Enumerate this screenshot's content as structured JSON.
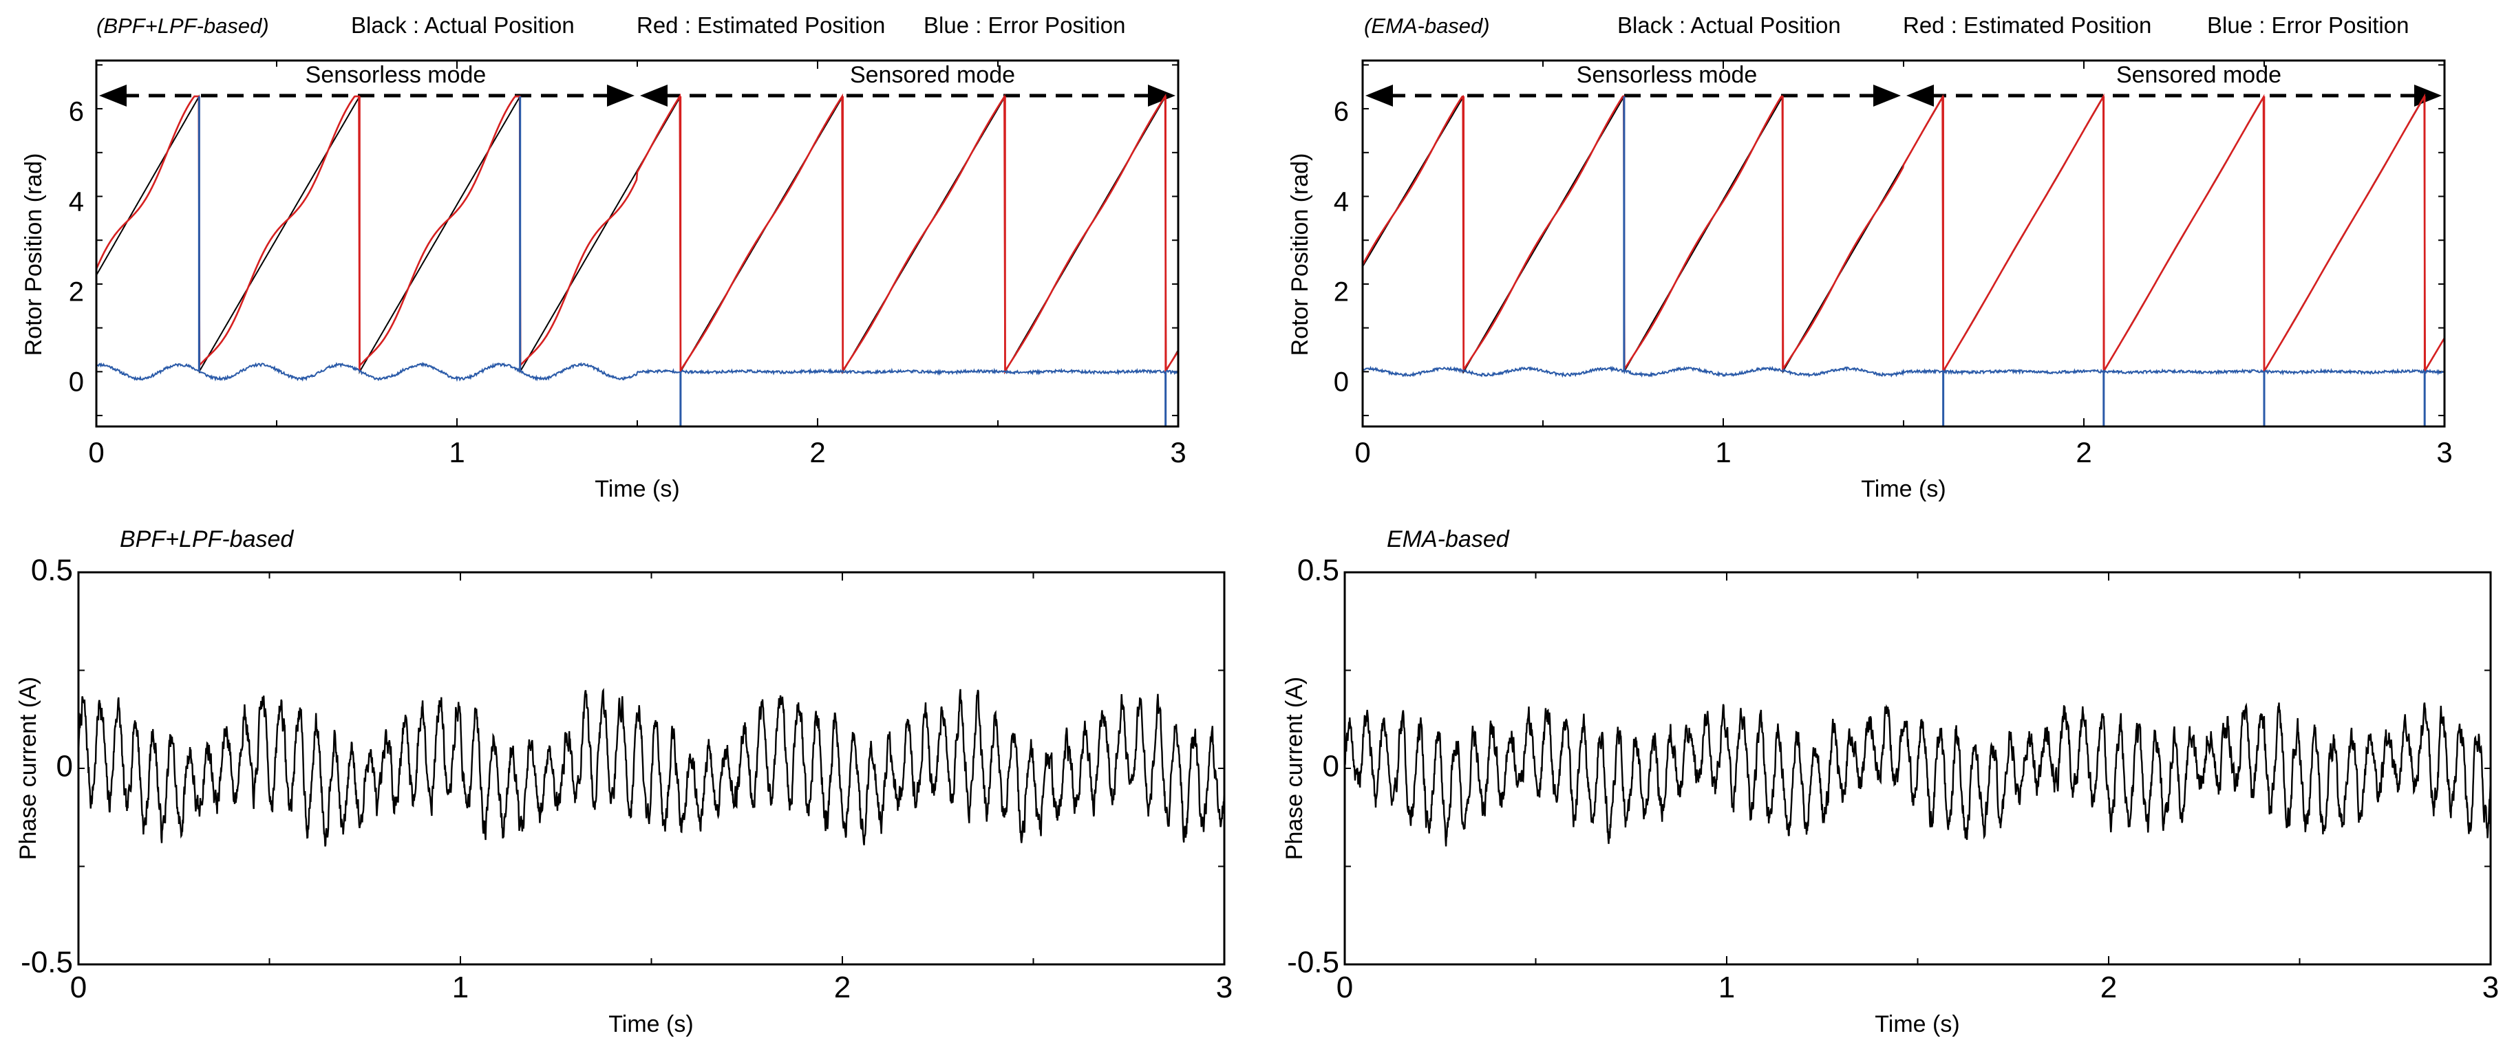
{
  "chart_data": [
    {
      "id": "pos_bpf",
      "type": "line",
      "variant_label": "(BPF+LPF-based)",
      "legend": [
        "Black : Actual Position",
        "Red : Estimated Position",
        "Blue : Error Position"
      ],
      "legend_placement": "top",
      "xlabel": "Time (s)",
      "ylabel": "Rotor Position (rad)",
      "xlim": [
        0,
        3
      ],
      "ylim": [
        -1.25,
        7.1
      ],
      "xticks": [
        0,
        1,
        2,
        3
      ],
      "xtick_labels": [
        "0",
        "1",
        "2",
        "3"
      ],
      "yticks": [
        0,
        2,
        4,
        6
      ],
      "ytick_labels": [
        "0",
        "2",
        "4",
        "6"
      ],
      "modes": [
        {
          "label": "Sensorless mode",
          "start": 0,
          "end": 1.5
        },
        {
          "label": "Sensored mode",
          "start": 1.5,
          "end": 3
        }
      ],
      "wraps": [
        0.285,
        0.73,
        1.175,
        1.62,
        2.07,
        2.52,
        2.965
      ],
      "start_value": 2.2,
      "position_max": 6.283,
      "sensorless_ripple_amp": 0.22,
      "sensorless_error_amp": 0.16,
      "sensored_error_amp": 0.04,
      "error_spike_times": [
        0.285,
        1.175,
        1.62,
        2.965
      ],
      "series": [
        {
          "name": "Actual Position",
          "color": "#000000"
        },
        {
          "name": "Estimated Position",
          "color": "#d62020"
        },
        {
          "name": "Error Position",
          "color": "#2a5aa8"
        }
      ]
    },
    {
      "id": "pos_ema",
      "type": "line",
      "variant_label": "(EMA-based)",
      "legend": [
        "Black : Actual Position",
        "Red : Estimated Position",
        "Blue : Error Position"
      ],
      "legend_placement": "top",
      "xlabel": "Time (s)",
      "ylabel": "Rotor Position (rad)",
      "xlim": [
        0,
        3
      ],
      "ylim": [
        -1.25,
        7.1
      ],
      "xticks": [
        0,
        1,
        2,
        3
      ],
      "xtick_labels": [
        "0",
        "1",
        "2",
        "3"
      ],
      "yticks": [
        0,
        2,
        4,
        6
      ],
      "ytick_labels": [
        "0",
        "2",
        "4",
        "6"
      ],
      "modes": [
        {
          "label": "Sensorless mode",
          "start": 0,
          "end": 1.5
        },
        {
          "label": "Sensored mode",
          "start": 1.5,
          "end": 3
        }
      ],
      "wraps": [
        0.28,
        0.725,
        1.165,
        1.61,
        2.055,
        2.5,
        2.945
      ],
      "start_value": 2.4,
      "position_max": 6.283,
      "sensorless_ripple_amp": 0.06,
      "sensorless_error_amp": 0.07,
      "sensored_error_amp": 0.04,
      "error_spike_times": [
        0.725,
        1.61,
        2.055,
        2.5,
        2.945
      ],
      "series": [
        {
          "name": "Actual Position",
          "color": "#000000"
        },
        {
          "name": "Estimated Position",
          "color": "#d62020"
        },
        {
          "name": "Error Position",
          "color": "#2a5aa8"
        }
      ]
    },
    {
      "id": "cur_bpf",
      "type": "line",
      "variant_label": "BPF+LPF-based",
      "xlabel": "Time (s)",
      "ylabel": "Phase current (A)",
      "xlim": [
        0,
        3
      ],
      "ylim": [
        -0.5,
        0.5
      ],
      "xticks": [
        0,
        1,
        2,
        3
      ],
      "xtick_labels": [
        "0",
        "1",
        "2",
        "3"
      ],
      "yticks": [
        -0.5,
        0,
        0.5
      ],
      "ytick_labels": [
        "-0.5",
        "0",
        "0.5"
      ],
      "oscillation_cycles": 64,
      "oscillation_amp": 0.13,
      "envelope_period_s": 0.45,
      "dc_wander_amp": 0.05,
      "noise_amp": 0.03,
      "seed": 7,
      "series": [
        {
          "name": "Phase current",
          "color": "#000000"
        }
      ]
    },
    {
      "id": "cur_ema",
      "type": "line",
      "variant_label": "EMA-based",
      "xlabel": "Time (s)",
      "ylabel": "Phase current (A)",
      "xlim": [
        0,
        3
      ],
      "ylim": [
        -0.5,
        0.5
      ],
      "xticks": [
        0,
        1,
        2,
        3
      ],
      "xtick_labels": [
        "0",
        "1",
        "2",
        "3"
      ],
      "yticks": [
        -0.5,
        0,
        0.5
      ],
      "ytick_labels": [
        "-0.5",
        "0",
        "0.5"
      ],
      "oscillation_cycles": 64,
      "oscillation_amp": 0.12,
      "envelope_period_s": 0.46,
      "dc_wander_amp": 0.04,
      "noise_amp": 0.03,
      "seed": 19,
      "series": [
        {
          "name": "Phase current",
          "color": "#000000"
        }
      ]
    }
  ]
}
